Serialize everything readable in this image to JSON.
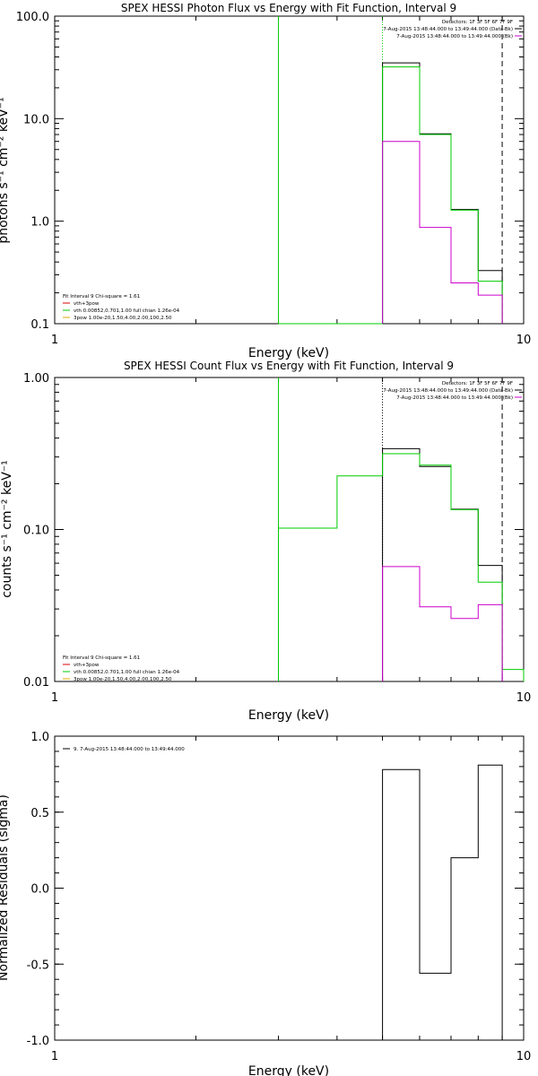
{
  "colors": {
    "data": "#000000",
    "model": "#00cc00",
    "background": "#cc00cc",
    "red": "#dd0000",
    "orange": "#ddaa00",
    "axis": "#000000"
  },
  "chart_data": [
    {
      "type": "line",
      "title": "SPEX HESSI Photon Flux vs Energy with Fit Function, Interval 9",
      "xlabel": "Energy (keV)",
      "ylabel": "photons s⁻¹ cm⁻² keV⁻¹",
      "xscale": "log",
      "yscale": "log",
      "xlim": [
        1,
        10
      ],
      "ylim": [
        0.1,
        100
      ],
      "xticks": [
        1,
        10
      ],
      "xtick_labels": [
        "1",
        "10"
      ],
      "yticks": [
        0.1,
        1,
        10,
        100
      ],
      "ytick_labels": [
        "0.1",
        "1.0",
        "10.0",
        "100.0"
      ],
      "bin_edges": [
        3.0,
        4.0,
        5.0,
        6.0,
        7.0,
        8.0,
        9.0
      ],
      "series": [
        {
          "name": "data",
          "color": "#000000",
          "values": [
            null,
            null,
            35,
            7.1,
            1.3,
            0.33
          ]
        },
        {
          "name": "vth+3pow",
          "color": "#00cc00",
          "values": [
            0.1,
            0.1,
            32,
            7.0,
            1.28,
            0.26
          ]
        },
        {
          "name": "bk",
          "color": "#cc00cc",
          "values": [
            null,
            null,
            6.0,
            0.87,
            0.25,
            0.19
          ]
        }
      ],
      "vlines": [
        {
          "x": 3.0,
          "color": "#00cc00",
          "style": "solid"
        },
        {
          "x": 5.0,
          "color": "#00cc00",
          "style": "dotted"
        },
        {
          "x": 9.0,
          "color": "#000000",
          "style": "dashed"
        }
      ],
      "legend_tr": [
        "Detectors: 1F 3F 5F 6F 7F 9F",
        "7-Aug-2015 13:48:44.000 to 13:49:44.000 (Data-Bk)",
        "7-Aug-2015 13:48:44.000 to 13:49:44.000 (Bk)"
      ],
      "legend_bl": [
        "Fit Interval 9   Chi-square = 1.61",
        "vth+3pow",
        "vth 0.00852,0.701,1.00   full chian 1.26e-04",
        "3pow 1.00e-20,1.50,4.00,2.00,100,2.50"
      ]
    },
    {
      "type": "line",
      "title": "SPEX HESSI Count Flux vs Energy with Fit Function, Interval 9",
      "xlabel": "Energy (keV)",
      "ylabel": "counts s⁻¹ cm⁻² keV⁻¹",
      "xscale": "log",
      "yscale": "log",
      "xlim": [
        1,
        10
      ],
      "ylim": [
        0.01,
        1
      ],
      "xticks": [
        1,
        10
      ],
      "xtick_labels": [
        "1",
        "10"
      ],
      "yticks": [
        0.01,
        0.1,
        1
      ],
      "ytick_labels": [
        "0.01",
        "0.10",
        "1.00"
      ],
      "bin_edges": [
        3.0,
        4.0,
        5.0,
        6.0,
        7.0,
        8.0,
        9.0,
        10.0
      ],
      "series": [
        {
          "name": "data",
          "color": "#000000",
          "values": [
            null,
            null,
            0.34,
            0.26,
            0.136,
            0.058,
            null
          ]
        },
        {
          "name": "vth+3pow",
          "color": "#00cc00",
          "values": [
            0.102,
            0.225,
            0.315,
            0.265,
            0.135,
            0.045,
            0.012
          ]
        },
        {
          "name": "bk",
          "color": "#cc00cc",
          "values": [
            null,
            null,
            0.057,
            0.031,
            0.026,
            0.032,
            null
          ]
        }
      ],
      "vlines": [
        {
          "x": 3.0,
          "color": "#00cc00",
          "style": "solid"
        },
        {
          "x": 5.0,
          "color": "#000000",
          "style": "dotted"
        },
        {
          "x": 9.0,
          "color": "#000000",
          "style": "dashed"
        }
      ],
      "legend_tr": [
        "Detectors: 1F 3F 5F 6F 7F 9F",
        "7-Aug-2015 13:48:44.000 to 13:49:44.000 (Data-Bk)",
        "7-Aug-2015 13:48:44.000 to 13:49:44.000 (Bk)"
      ],
      "legend_bl": [
        "Fit Interval 9   Chi-square = 1.61",
        "vth+3pow",
        "vth 0.00852,0.701,1.00   full chian 1.26e-04",
        "3pow 1.00e-20,1.50,4.00,2.00,100,2.50"
      ]
    },
    {
      "type": "line",
      "title": "",
      "xlabel": "Energy (keV)",
      "ylabel": "Normalized Residuals (sigma)",
      "xscale": "log",
      "yscale": "linear",
      "xlim": [
        1,
        10
      ],
      "ylim": [
        -1,
        1
      ],
      "xticks": [
        1,
        10
      ],
      "xtick_labels": [
        "1",
        "10"
      ],
      "yticks": [
        -1,
        -0.5,
        0,
        0.5,
        1
      ],
      "ytick_labels": [
        "-1.0",
        "-0.5",
        "0.0",
        "0.5",
        "1.0"
      ],
      "bin_edges": [
        5.0,
        6.0,
        7.0,
        8.0,
        9.0
      ],
      "series": [
        {
          "name": "residuals",
          "color": "#000000",
          "values": [
            0.78,
            -0.56,
            0.2,
            0.81
          ]
        }
      ],
      "legend_tl": [
        "9.  7-Aug-2015 13:48:44.000 to 13:49:44.000"
      ]
    }
  ]
}
